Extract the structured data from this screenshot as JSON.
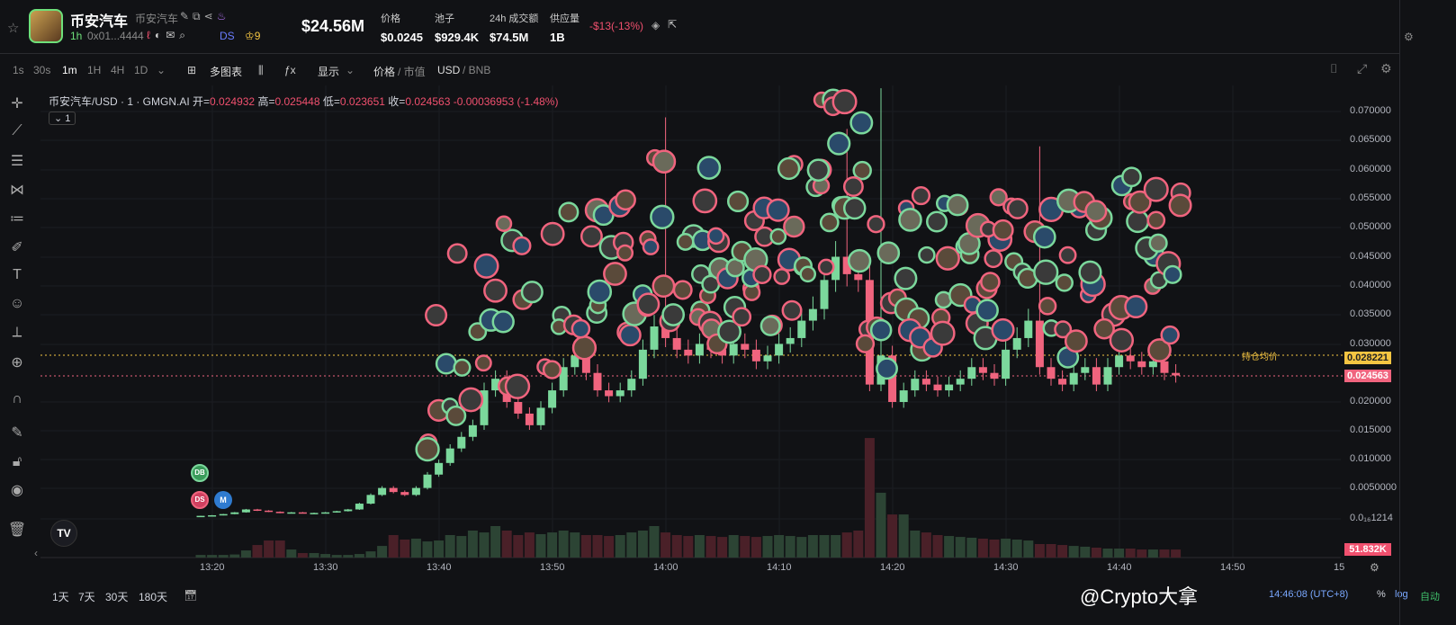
{
  "header": {
    "title": "币安汽车",
    "subtitle": "币安汽车",
    "timeframe": "1h",
    "address": "0x01...4444",
    "ds_label": "DS",
    "holders_badge": "9",
    "market_cap": "$24.56M",
    "stats": [
      {
        "label": "价格",
        "value": "$0.0245"
      },
      {
        "label": "池子",
        "value": "$929.4K"
      },
      {
        "label": "24h 成交额",
        "value": "$74.5M"
      },
      {
        "label": "供应量",
        "value": "1B"
      }
    ],
    "change": "-$13(-13%)"
  },
  "toolbar": {
    "intervals": [
      "1s",
      "30s",
      "1m",
      "1H",
      "4H",
      "1D"
    ],
    "active_interval": "1m",
    "multi_chart": "多图表",
    "display": "显示",
    "price": "价格",
    "mcap": "/ 市值",
    "usd": "USD",
    "bnb": "/ BNB"
  },
  "legend": {
    "symbol": "币安汽车/USD · 1 · GMGN.AI",
    "open_label": "开=",
    "open": "0.024932",
    "high_label": "高=",
    "high": "0.025448",
    "low_label": "低=",
    "low": "0.023651",
    "close_label": "收=",
    "close": "0.024563",
    "change": "-0.00036953 (-1.48%)",
    "collapse": "1"
  },
  "markers": {
    "db": "DB",
    "ds": "DS",
    "m": "M",
    "avg_label": "持仓均价"
  },
  "colors": {
    "up": "#7bd89c",
    "down": "#f0647e",
    "avg": "#f5c542",
    "bg": "#111215"
  },
  "chart_data": {
    "type": "candlestick",
    "start_time": "13:19",
    "interval": "1m",
    "ylim": [
      0,
      0.0725
    ],
    "closes": [
      0.0004,
      0.0005,
      0.0007,
      0.001,
      0.0015,
      0.0013,
      0.0011,
      0.0009,
      0.001,
      0.0009,
      0.0009,
      0.001,
      0.0012,
      0.0015,
      0.0025,
      0.004,
      0.0052,
      0.0045,
      0.004,
      0.0052,
      0.0075,
      0.0095,
      0.012,
      0.014,
      0.016,
      0.022,
      0.024,
      0.02,
      0.018,
      0.016,
      0.019,
      0.022,
      0.026,
      0.028,
      0.025,
      0.022,
      0.021,
      0.022,
      0.024,
      0.029,
      0.033,
      0.031,
      0.029,
      0.028,
      0.03,
      0.029,
      0.028,
      0.03,
      0.029,
      0.027,
      0.028,
      0.03,
      0.031,
      0.034,
      0.036,
      0.041,
      0.045,
      0.042,
      0.041,
      0.023,
      0.028,
      0.02,
      0.022,
      0.024,
      0.023,
      0.022,
      0.023,
      0.024,
      0.026,
      0.025,
      0.024,
      0.029,
      0.031,
      0.034,
      0.026,
      0.024,
      0.023,
      0.025,
      0.026,
      0.023,
      0.026,
      0.028,
      0.027,
      0.026,
      0.027,
      0.025,
      0.024563
    ],
    "highs_extra": {
      "14:00": 0.069,
      "14:16": 0.067,
      "14:19": 0.074,
      "14:33": 0.064
    },
    "volumes_k": [
      17,
      17,
      17,
      20,
      46,
      81,
      110,
      110,
      52,
      29,
      29,
      23,
      17,
      17,
      23,
      40,
      75,
      145,
      116,
      122,
      104,
      110,
      145,
      139,
      174,
      162,
      203,
      174,
      145,
      162,
      151,
      162,
      174,
      162,
      145,
      145,
      139,
      145,
      162,
      174,
      203,
      162,
      145,
      139,
      145,
      139,
      133,
      145,
      139,
      133,
      139,
      145,
      139,
      133,
      145,
      145,
      145,
      162,
      174,
      771,
      418,
      278,
      278,
      174,
      162,
      145,
      139,
      133,
      128,
      122,
      116,
      122,
      116,
      110,
      87,
      87,
      81,
      75,
      70,
      64,
      58,
      58,
      58,
      52,
      52,
      52,
      51.832
    ],
    "y_ticks": [
      "0.070000",
      "0.065000",
      "0.060000",
      "0.055000",
      "0.050000",
      "0.045000",
      "0.040000",
      "0.035000",
      "0.030000",
      "0.020000",
      "0.015000",
      "0.010000",
      "0.0050000",
      "0.0₁₆1214"
    ],
    "x_ticks": [
      "13:20",
      "13:30",
      "13:40",
      "13:50",
      "14:00",
      "14:10",
      "14:20",
      "14:30",
      "14:40",
      "14:50",
      "15"
    ],
    "avg_price": "0.028221",
    "last_price": "0.024563",
    "last_volume": "51.832K"
  },
  "bottom": {
    "ranges": [
      "1天",
      "7天",
      "30天",
      "180天"
    ],
    "clock": "14:46:08 (UTC+8)",
    "pct": "%",
    "log": "log",
    "auto": "自动",
    "watermark": "@Crypto大拿"
  }
}
